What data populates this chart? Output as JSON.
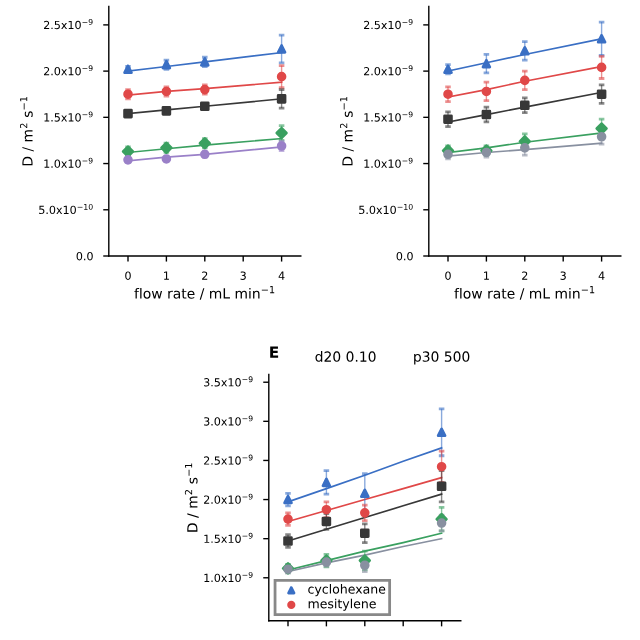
{
  "chart_data": [
    {
      "type": "scatter",
      "xlabel": "flow rate / mL min$^{−1}$",
      "ylabel": "D / m$^{2}$ s$^{−1}$",
      "x": [
        0,
        1,
        2,
        4
      ],
      "xlim": [
        -0.5,
        4.5
      ],
      "xticks": [
        0,
        1,
        2,
        3,
        4
      ],
      "ylim": [
        0,
        2.7e-09
      ],
      "yticks": [
        {
          "value": 0,
          "label": "0.0"
        },
        {
          "value": 5e-10,
          "label": "5.0x10$^{−10}$"
        },
        {
          "value": 1e-09,
          "label": "1.0x10$^{−9}$"
        },
        {
          "value": 1.5e-09,
          "label": "1.5x10$^{−9}$"
        },
        {
          "value": 2e-09,
          "label": "2.0x10$^{−9}$"
        },
        {
          "value": 2.5e-09,
          "label": "2.5x10$^{−9}$"
        }
      ],
      "series": [
        {
          "color": "#3a6fc4",
          "marker": "triangle",
          "values": [
            2.02e-09,
            2.07e-09,
            2.1e-09,
            2.24e-09
          ],
          "errors": [
            3e-11,
            5e-11,
            5e-11,
            1.5e-10
          ]
        },
        {
          "color": "#e04848",
          "marker": "circle",
          "values": [
            1.75e-09,
            1.78e-09,
            1.8e-09,
            1.94e-09
          ],
          "errors": [
            5e-11,
            5e-11,
            5e-11,
            1.2e-10
          ]
        },
        {
          "color": "#383838",
          "marker": "square",
          "values": [
            1.54e-09,
            1.57e-09,
            1.62e-09,
            1.7e-09
          ],
          "errors": [
            2e-11,
            3e-11,
            3e-11,
            1e-10
          ]
        },
        {
          "color": "#3aa060",
          "marker": "diamond",
          "values": [
            1.13e-09,
            1.17e-09,
            1.22e-09,
            1.33e-09
          ],
          "errors": [
            5e-11,
            5e-11,
            5e-11,
            8e-11
          ]
        },
        {
          "color": "#9a80c8",
          "marker": "circle",
          "values": [
            1.04e-09,
            1.05e-09,
            1.1e-09,
            1.19e-09
          ],
          "errors": [
            3e-11,
            3e-11,
            3e-11,
            5e-11
          ]
        },
        {
          "type": "line",
          "color": "#3a6fc4",
          "values": [
            2e-09,
            2.05e-09,
            2.1e-09,
            2.2e-09
          ]
        },
        {
          "type": "line",
          "color": "#e04848",
          "values": [
            1.74e-09,
            1.78e-09,
            1.81e-09,
            1.88e-09
          ]
        },
        {
          "type": "line",
          "color": "#383838",
          "values": [
            1.54e-09,
            1.58e-09,
            1.62e-09,
            1.7e-09
          ]
        },
        {
          "type": "line",
          "color": "#3aa060",
          "values": [
            1.12e-09,
            1.16e-09,
            1.2e-09,
            1.27e-09
          ]
        },
        {
          "type": "line",
          "color": "#9a80c8",
          "values": [
            1.03e-09,
            1.07e-09,
            1.1e-09,
            1.18e-09
          ]
        }
      ]
    },
    {
      "type": "scatter",
      "xlabel": "flow rate / mL min$^{−1}$",
      "ylabel": "D / m$^{2}$ s$^{−1}$",
      "x": [
        0,
        1,
        2,
        4
      ],
      "xlim": [
        -0.5,
        4.5
      ],
      "xticks": [
        0,
        1,
        2,
        3,
        4
      ],
      "ylim": [
        0,
        2.7e-09
      ],
      "yticks": [
        {
          "value": 0,
          "label": "0.0"
        },
        {
          "value": 5e-10,
          "label": "5.0x10$^{−10}$"
        },
        {
          "value": 1e-09,
          "label": "1.0x10$^{−9}$"
        },
        {
          "value": 1.5e-09,
          "label": "1.5x10$^{−9}$"
        },
        {
          "value": 2e-09,
          "label": "2.0x10$^{−9}$"
        },
        {
          "value": 2.5e-09,
          "label": "2.5x10$^{−9}$"
        }
      ],
      "series": [
        {
          "color": "#3a6fc4",
          "marker": "triangle",
          "values": [
            2.02e-09,
            2.08e-09,
            2.22e-09,
            2.35e-09
          ],
          "errors": [
            5e-11,
            1e-10,
            1e-10,
            1.8e-10
          ]
        },
        {
          "color": "#e04848",
          "marker": "circle",
          "values": [
            1.75e-09,
            1.78e-09,
            1.9e-09,
            2.04e-09
          ],
          "errors": [
            8e-11,
            1e-10,
            1e-10,
            1.2e-10
          ]
        },
        {
          "color": "#383838",
          "marker": "square",
          "values": [
            1.48e-09,
            1.53e-09,
            1.63e-09,
            1.75e-09
          ],
          "errors": [
            8e-11,
            8e-11,
            8e-11,
            1e-10
          ]
        },
        {
          "color": "#3aa060",
          "marker": "diamond",
          "values": [
            1.14e-09,
            1.14e-09,
            1.24e-09,
            1.38e-09
          ],
          "errors": [
            5e-11,
            5e-11,
            8e-11,
            1e-10
          ]
        },
        {
          "color": "#8890a0",
          "marker": "circle",
          "values": [
            1.1e-09,
            1.12e-09,
            1.17e-09,
            1.29e-09
          ],
          "errors": [
            5e-11,
            5e-11,
            8e-11,
            8e-11
          ]
        },
        {
          "type": "line",
          "color": "#3a6fc4",
          "values": [
            2e-09,
            2.09e-09,
            2.18e-09,
            2.35e-09
          ]
        },
        {
          "type": "line",
          "color": "#e04848",
          "values": [
            1.72e-09,
            1.8e-09,
            1.89e-09,
            2.05e-09
          ]
        },
        {
          "type": "line",
          "color": "#383838",
          "values": [
            1.45e-09,
            1.53e-09,
            1.61e-09,
            1.77e-09
          ]
        },
        {
          "type": "line",
          "color": "#3aa060",
          "values": [
            1.12e-09,
            1.17e-09,
            1.23e-09,
            1.33e-09
          ]
        },
        {
          "type": "line",
          "color": "#8890a0",
          "values": [
            1.08e-09,
            1.12e-09,
            1.15e-09,
            1.22e-09
          ]
        }
      ]
    },
    {
      "type": "scatter",
      "title": "E",
      "annotations": [
        "d20 0.10",
        "p30 500"
      ],
      "ylabel": "D / m$^{2}$ s$^{−1}$",
      "categories": [
        null,
        null,
        null,
        null,
        null
      ],
      "tick_labels": "y",
      "legend": "bottom left",
      "ylim": [
        4.5e-10,
        3.6e-09
      ],
      "yticks": [
        {
          "value": 1e-09,
          "label": "1.0x10$^{−9}$"
        },
        {
          "value": 1.5e-09,
          "label": "1.5x10$^{−9}$"
        },
        {
          "value": 2e-09,
          "label": "2.0x10$^{−9}$"
        },
        {
          "value": 2.5e-09,
          "label": "2.5x10$^{−9}$"
        },
        {
          "value": 3e-09,
          "label": "3.0x10$^{−9}$"
        },
        {
          "value": 3.5e-09,
          "label": "3.5x10$^{−9}$"
        }
      ],
      "series": [
        {
          "name": "cyclohexane",
          "color": "#3a6fc4",
          "marker": "triangle",
          "values": [
            2e-09,
            2.22e-09,
            2.08e-09,
            null,
            2.86e-09
          ],
          "errors": [
            8e-11,
            1.5e-10,
            2.5e-10,
            null,
            3e-10
          ]
        },
        {
          "name": "mesitylene",
          "color": "#e04848",
          "marker": "circle",
          "values": [
            1.75e-09,
            1.87e-09,
            1.83e-09,
            null,
            2.42e-09
          ],
          "errors": [
            8e-11,
            1e-10,
            1e-10,
            null,
            2e-10
          ]
        },
        {
          "color": "#383838",
          "marker": "square",
          "values": [
            1.47e-09,
            1.72e-09,
            1.57e-09,
            null,
            2.17e-09
          ],
          "errors": [
            8e-11,
            1e-10,
            1.2e-10,
            null,
            2e-10
          ]
        },
        {
          "color": "#3aa060",
          "marker": "diamond",
          "values": [
            1.12e-09,
            1.22e-09,
            1.22e-09,
            null,
            1.75e-09
          ],
          "errors": [
            5e-11,
            8e-11,
            1.2e-10,
            null,
            1.5e-10
          ]
        },
        {
          "color": "#8890a0",
          "marker": "circle",
          "values": [
            1.11e-09,
            1.2e-09,
            1.16e-09,
            null,
            1.7e-09
          ],
          "errors": [
            5e-11,
            5e-11,
            8e-11,
            null,
            1e-10
          ]
        },
        {
          "type": "line",
          "color": "#3a6fc4",
          "values": [
            1.97e-09,
            2.14e-09,
            2.31e-09,
            2.49e-09,
            2.66e-09
          ]
        },
        {
          "type": "line",
          "color": "#e04848",
          "values": [
            1.72e-09,
            1.86e-09,
            2e-09,
            2.14e-09,
            2.28e-09
          ]
        },
        {
          "type": "line",
          "color": "#383838",
          "values": [
            1.47e-09,
            1.62e-09,
            1.77e-09,
            1.92e-09,
            2.07e-09
          ]
        },
        {
          "type": "line",
          "color": "#3aa060",
          "values": [
            1.1e-09,
            1.22e-09,
            1.34e-09,
            1.45e-09,
            1.57e-09
          ]
        },
        {
          "type": "line",
          "color": "#8890a0",
          "values": [
            1.08e-09,
            1.19e-09,
            1.29e-09,
            1.4e-09,
            1.5e-09
          ]
        }
      ]
    }
  ]
}
